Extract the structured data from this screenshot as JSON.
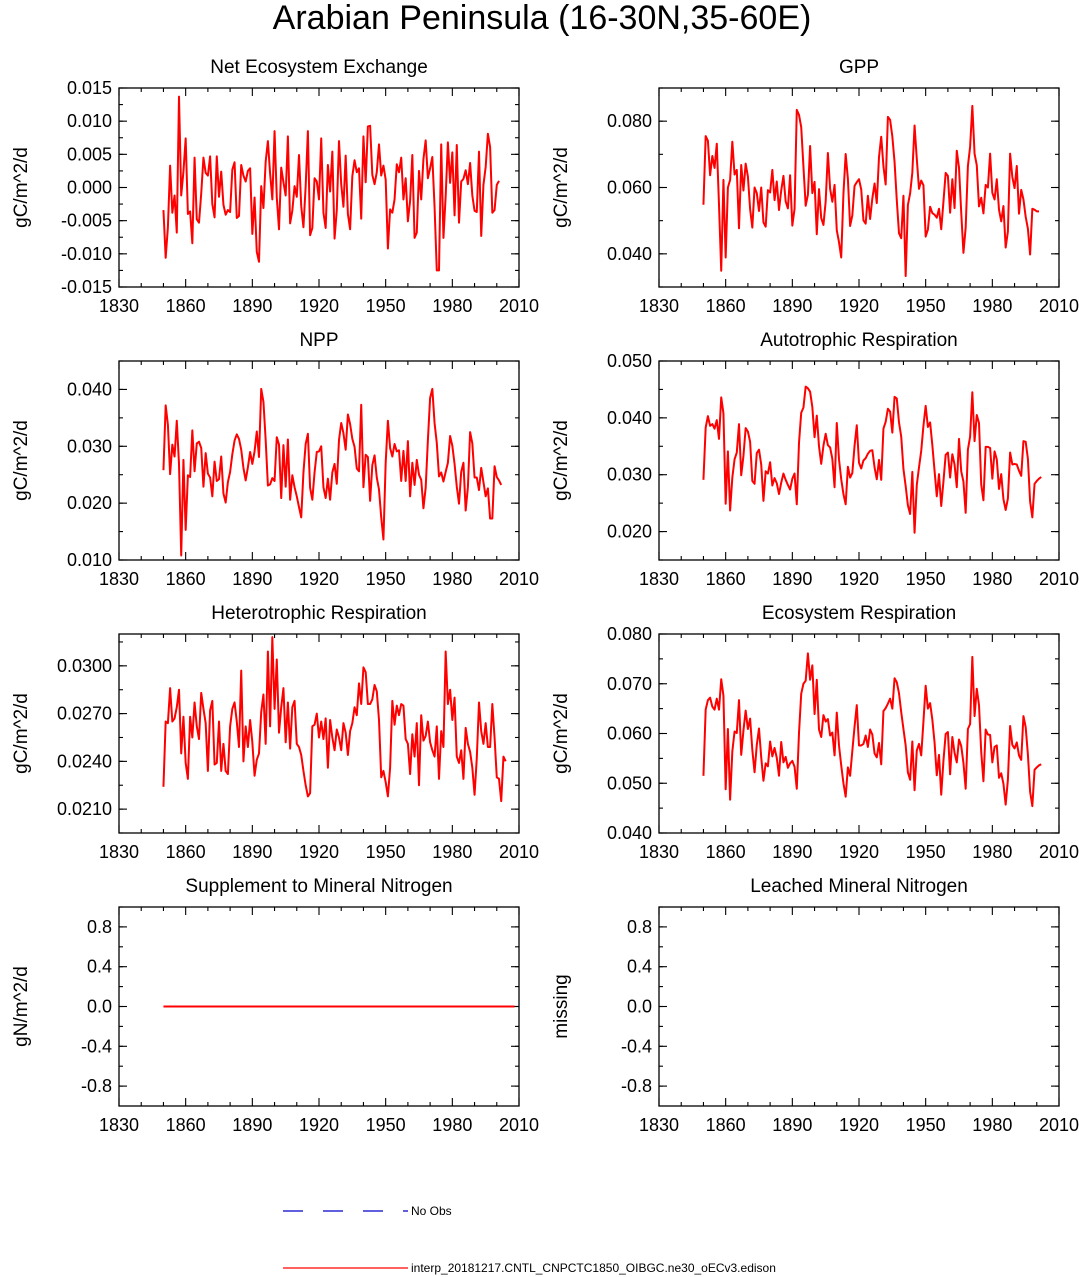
{
  "figure": {
    "title": "Arabian Peninsula (16-30N,35-60E)",
    "series_color": "#ff0000",
    "obs_color": "#0000cc"
  },
  "legend": {
    "obs_label": "No Obs",
    "model_label": "interp_20181217.CNTL_CNPCTC1850_OIBGC.ne30_oECv3.edison"
  },
  "chart_data": [
    {
      "type": "line",
      "title": "Net Ecosystem Exchange",
      "ylabel": "gC/m^2/d",
      "xlim": [
        1830,
        2010
      ],
      "ylim": [
        -0.015,
        0.015
      ],
      "xticks": [
        "1830",
        "1860",
        "1890",
        "1920",
        "1950",
        "1980",
        "2010"
      ],
      "yticks": [
        "-0.015",
        "-0.010",
        "-0.005",
        "0.000",
        "0.005",
        "0.010",
        "0.015"
      ],
      "x_start": 1850,
      "values": [
        -0.0034,
        -0.0106,
        -0.006,
        0.0033,
        -0.0038,
        -0.0012,
        -0.0068,
        0.0137,
        -0.0012,
        0.0024,
        0.0074,
        -0.004,
        -0.0036,
        -0.0084,
        0.0045,
        -0.0048,
        -0.0053,
        -0.0009,
        0.0045,
        0.0022,
        0.0018,
        0.0047,
        -0.0025,
        -0.0045,
        0.0047,
        -0.0014,
        0.0024,
        -0.0026,
        -0.0041,
        -0.0034,
        -0.0037,
        0.0027,
        0.0038,
        -0.0046,
        -0.0043,
        0.0034,
        0.0018,
        0.0009,
        0.0025,
        0.0029,
        -0.007,
        -0.0015,
        -0.0097,
        -0.0112,
        0.0002,
        -0.0031,
        0.0039,
        0.007,
        0.0021,
        -0.0018,
        0.0085,
        -0.0015,
        -0.0063,
        0.003,
        0.0008,
        -0.0012,
        0.0077,
        -0.0054,
        -0.0035,
        0.0002,
        -0.0014,
        0.0049,
        -0.0028,
        -0.006,
        0.0002,
        0.0085,
        -0.0072,
        -0.0061,
        0.0014,
        0.0009,
        -0.0018,
        0.0074,
        -0.0038,
        -0.0061,
        0.0034,
        -0.0006,
        0.0054,
        -0.0077,
        -0.0034,
        0.007,
        0.0005,
        -0.0029,
        0.0048,
        -0.004,
        -0.0063,
        0.0017,
        0.0041,
        0.0023,
        0.0029,
        -0.0047,
        0.0077,
        0.0008,
        0.0092,
        0.0093,
        0.0019,
        0.0005,
        0.0023,
        0.0065,
        0.0018,
        0.0033,
        0.0012,
        -0.0092,
        -0.0033,
        -0.0038,
        -0.0018,
        0.0035,
        0.0023,
        0.0045,
        -0.0018,
        0.0014,
        -0.0051,
        -0.002,
        0.0049,
        -0.0076,
        -0.0068,
        0.0025,
        -0.0018,
        0.0043,
        0.0071,
        0.0014,
        0.0029,
        0.0046,
        -0.0029,
        -0.0125,
        -0.0125,
        0.0065,
        -0.0076,
        -0.0013,
        0.0068,
        0.0007,
        0.0053,
        -0.0042,
        0.0064,
        -0.0053,
        0.0009,
        0.0013,
        0.0026,
        0.0005,
        0.0037,
        -0.0012,
        -0.0035,
        -0.0037,
        0.0054,
        -0.0073,
        0.0004,
        0.0031,
        0.0081,
        0.0061,
        -0.0038,
        -0.0034,
        0.0004,
        0.001
      ]
    },
    {
      "type": "line",
      "title": "GPP",
      "ylabel": "gC/m^2/d",
      "xlim": [
        1830,
        2010
      ],
      "ylim": [
        0.03,
        0.09
      ],
      "xticks": [
        "1830",
        "1860",
        "1890",
        "1920",
        "1950",
        "1980",
        "2010"
      ],
      "yticks": [
        "0.040",
        "0.060",
        "0.080"
      ],
      "ytick_values": [
        0.04,
        0.06,
        0.08
      ],
      "x_start": 1850,
      "values": [
        0.0548,
        0.0755,
        0.0741,
        0.0637,
        0.0695,
        0.0659,
        0.0732,
        0.0548,
        0.0349,
        0.0623,
        0.0389,
        0.06,
        0.0623,
        0.0738,
        0.0639,
        0.0653,
        0.0477,
        0.0668,
        0.0591,
        0.0672,
        0.0633,
        0.0535,
        0.0479,
        0.06,
        0.0583,
        0.0529,
        0.06,
        0.0495,
        0.0482,
        0.0592,
        0.0585,
        0.0653,
        0.0562,
        0.0618,
        0.0532,
        0.0591,
        0.0635,
        0.0558,
        0.0537,
        0.0637,
        0.0485,
        0.0536,
        0.0834,
        0.0819,
        0.0782,
        0.0663,
        0.0545,
        0.0578,
        0.0725,
        0.0583,
        0.0617,
        0.0459,
        0.0595,
        0.0508,
        0.0487,
        0.0558,
        0.0704,
        0.0596,
        0.0557,
        0.0608,
        0.0471,
        0.0435,
        0.0389,
        0.0581,
        0.0701,
        0.0626,
        0.0484,
        0.0516,
        0.0605,
        0.0616,
        0.0625,
        0.0594,
        0.0501,
        0.0491,
        0.0575,
        0.0505,
        0.0567,
        0.0612,
        0.0553,
        0.0692,
        0.0753,
        0.0664,
        0.0609,
        0.0813,
        0.0804,
        0.0754,
        0.0677,
        0.0562,
        0.0462,
        0.0447,
        0.0575,
        0.0333,
        0.0547,
        0.0582,
        0.0645,
        0.0787,
        0.0687,
        0.0596,
        0.0621,
        0.0607,
        0.0452,
        0.0473,
        0.0542,
        0.0523,
        0.0518,
        0.0509,
        0.0536,
        0.0474,
        0.0557,
        0.0644,
        0.0635,
        0.0524,
        0.0625,
        0.0538,
        0.0711,
        0.066,
        0.0525,
        0.0403,
        0.0479,
        0.0664,
        0.0723,
        0.0846,
        0.0702,
        0.0667,
        0.0543,
        0.0569,
        0.0522,
        0.0608,
        0.06,
        0.0702,
        0.0584,
        0.0564,
        0.0625,
        0.0533,
        0.0498,
        0.0544,
        0.0419,
        0.0467,
        0.0702,
        0.0632,
        0.0598,
        0.0665,
        0.0521,
        0.0593,
        0.0564,
        0.0512,
        0.0476,
        0.0398,
        0.0536,
        0.0533,
        0.0528,
        0.0528
      ]
    },
    {
      "type": "line",
      "title": "NPP",
      "ylabel": "gC/m^2/d",
      "xlim": [
        1830,
        2010
      ],
      "ylim": [
        0.01,
        0.045
      ],
      "xticks": [
        "1830",
        "1860",
        "1890",
        "1920",
        "1950",
        "1980",
        "2010"
      ],
      "yticks": [
        "0.010",
        "0.020",
        "0.030",
        "0.040"
      ],
      "ytick_values": [
        0.01,
        0.02,
        0.03,
        0.04
      ],
      "x_start": 1850,
      "values": [
        0.0258,
        0.0372,
        0.0338,
        0.0251,
        0.0303,
        0.0282,
        0.0345,
        0.0269,
        0.0108,
        0.0276,
        0.0153,
        0.0249,
        0.0246,
        0.0328,
        0.0256,
        0.0305,
        0.0308,
        0.0297,
        0.0229,
        0.0288,
        0.0252,
        0.0245,
        0.0212,
        0.0273,
        0.0239,
        0.0242,
        0.0282,
        0.0217,
        0.0201,
        0.0237,
        0.0255,
        0.0286,
        0.031,
        0.0321,
        0.0313,
        0.0294,
        0.0262,
        0.024,
        0.0263,
        0.029,
        0.0269,
        0.0291,
        0.0326,
        0.0281,
        0.0401,
        0.0378,
        0.0311,
        0.0231,
        0.0233,
        0.0244,
        0.0239,
        0.0316,
        0.0303,
        0.0209,
        0.0302,
        0.0229,
        0.0312,
        0.0206,
        0.0249,
        0.0228,
        0.0212,
        0.0193,
        0.0175,
        0.0254,
        0.0304,
        0.0322,
        0.0227,
        0.0206,
        0.0254,
        0.029,
        0.0291,
        0.03,
        0.0228,
        0.0209,
        0.0243,
        0.0206,
        0.0254,
        0.0269,
        0.0234,
        0.0311,
        0.0341,
        0.0323,
        0.0294,
        0.0356,
        0.0339,
        0.0313,
        0.0299,
        0.0261,
        0.0256,
        0.0373,
        0.0228,
        0.0285,
        0.0281,
        0.0204,
        0.0267,
        0.0284,
        0.0245,
        0.0224,
        0.0175,
        0.0136,
        0.0271,
        0.0345,
        0.0297,
        0.0282,
        0.0304,
        0.0291,
        0.0293,
        0.0239,
        0.0292,
        0.0239,
        0.0309,
        0.0212,
        0.0271,
        0.0232,
        0.0276,
        0.025,
        0.0241,
        0.0191,
        0.0227,
        0.0311,
        0.0385,
        0.0401,
        0.0341,
        0.0306,
        0.0247,
        0.0254,
        0.0238,
        0.0255,
        0.0271,
        0.0318,
        0.0301,
        0.0269,
        0.0229,
        0.0199,
        0.0255,
        0.0271,
        0.0187,
        0.0228,
        0.0325,
        0.0305,
        0.0245,
        0.0245,
        0.0223,
        0.0262,
        0.0237,
        0.0212,
        0.0226,
        0.0173,
        0.0173,
        0.0265,
        0.0246,
        0.024,
        0.0232
      ]
    },
    {
      "type": "line",
      "title": "Autotrophic Respiration",
      "ylabel": "gC/m^2/d",
      "xlim": [
        1830,
        2010
      ],
      "ylim": [
        0.015,
        0.05
      ],
      "xticks": [
        "1830",
        "1860",
        "1890",
        "1920",
        "1950",
        "1980",
        "2010"
      ],
      "yticks": [
        "0.020",
        "0.030",
        "0.040",
        "0.050"
      ],
      "ytick_values": [
        0.02,
        0.03,
        0.04,
        0.05
      ],
      "x_start": 1850,
      "values": [
        0.0291,
        0.0383,
        0.0403,
        0.0386,
        0.0389,
        0.0381,
        0.0396,
        0.0363,
        0.0436,
        0.0408,
        0.0249,
        0.0341,
        0.0237,
        0.0295,
        0.0327,
        0.0339,
        0.0389,
        0.0299,
        0.0333,
        0.0382,
        0.0376,
        0.0358,
        0.0289,
        0.0284,
        0.0338,
        0.0344,
        0.0318,
        0.0254,
        0.0306,
        0.0302,
        0.0322,
        0.0281,
        0.0294,
        0.0285,
        0.0266,
        0.0286,
        0.0302,
        0.0291,
        0.0282,
        0.0274,
        0.0293,
        0.0302,
        0.0248,
        0.0356,
        0.0409,
        0.0418,
        0.0455,
        0.0452,
        0.0446,
        0.0419,
        0.0366,
        0.0404,
        0.035,
        0.0319,
        0.0351,
        0.0372,
        0.0352,
        0.0348,
        0.0328,
        0.0278,
        0.0391,
        0.0327,
        0.0292,
        0.0266,
        0.0248,
        0.0314,
        0.0295,
        0.0303,
        0.0351,
        0.0387,
        0.0321,
        0.0311,
        0.0325,
        0.0329,
        0.0337,
        0.0342,
        0.0343,
        0.0313,
        0.0292,
        0.0326,
        0.0291,
        0.0381,
        0.0393,
        0.0416,
        0.0411,
        0.0374,
        0.0437,
        0.0434,
        0.0392,
        0.0367,
        0.031,
        0.028,
        0.0246,
        0.0231,
        0.0305,
        0.0198,
        0.0282,
        0.0313,
        0.0342,
        0.0386,
        0.0421,
        0.0384,
        0.0392,
        0.0352,
        0.0307,
        0.0262,
        0.0301,
        0.0245,
        0.0288,
        0.0335,
        0.0339,
        0.0295,
        0.0336,
        0.0318,
        0.0278,
        0.0363,
        0.0306,
        0.0288,
        0.0233,
        0.0344,
        0.0367,
        0.0445,
        0.0359,
        0.0405,
        0.0391,
        0.0283,
        0.0255,
        0.0349,
        0.0349,
        0.0347,
        0.0293,
        0.0341,
        0.0327,
        0.0275,
        0.0301,
        0.0257,
        0.0238,
        0.0258,
        0.0339,
        0.0318,
        0.0319,
        0.0318,
        0.0307,
        0.0298,
        0.0359,
        0.0358,
        0.0328,
        0.0253,
        0.0225,
        0.0284,
        0.0289,
        0.0293,
        0.0296
      ]
    },
    {
      "type": "line",
      "title": "Heterotrophic Respiration",
      "ylabel": "gC/m^2/d",
      "xlim": [
        1830,
        2010
      ],
      "ylim": [
        0.0195,
        0.032
      ],
      "xticks": [
        "1830",
        "1860",
        "1890",
        "1920",
        "1950",
        "1980",
        "2010"
      ],
      "yticks": [
        "0.0210",
        "0.0240",
        "0.0270",
        "0.0300"
      ],
      "ytick_values": [
        0.021,
        0.024,
        0.027,
        0.03
      ],
      "x_start": 1850,
      "values": [
        0.0224,
        0.0265,
        0.0264,
        0.0286,
        0.0265,
        0.0267,
        0.0274,
        0.0285,
        0.0245,
        0.0268,
        0.0239,
        0.0229,
        0.0268,
        0.0255,
        0.0277,
        0.0262,
        0.0254,
        0.0283,
        0.0273,
        0.0264,
        0.0234,
        0.0272,
        0.0278,
        0.0238,
        0.0239,
        0.0265,
        0.0234,
        0.0251,
        0.0234,
        0.0232,
        0.0262,
        0.0273,
        0.0277,
        0.0265,
        0.0249,
        0.0297,
        0.024,
        0.0262,
        0.0249,
        0.0266,
        0.0252,
        0.0231,
        0.0241,
        0.0245,
        0.0271,
        0.0282,
        0.0251,
        0.0309,
        0.0262,
        0.0318,
        0.0273,
        0.0304,
        0.0258,
        0.0274,
        0.0286,
        0.0252,
        0.0277,
        0.0248,
        0.0274,
        0.0278,
        0.0251,
        0.0249,
        0.0244,
        0.0234,
        0.0225,
        0.0218,
        0.022,
        0.0262,
        0.0263,
        0.027,
        0.0255,
        0.0265,
        0.0254,
        0.0267,
        0.0236,
        0.0266,
        0.0255,
        0.0247,
        0.026,
        0.0255,
        0.0247,
        0.0264,
        0.0258,
        0.0244,
        0.0259,
        0.0264,
        0.0274,
        0.0269,
        0.0289,
        0.0276,
        0.0299,
        0.0296,
        0.0276,
        0.0276,
        0.0279,
        0.0288,
        0.0284,
        0.0266,
        0.023,
        0.0234,
        0.0227,
        0.0218,
        0.0236,
        0.0278,
        0.0263,
        0.0275,
        0.0269,
        0.0276,
        0.0275,
        0.0254,
        0.0251,
        0.0232,
        0.0257,
        0.0243,
        0.0264,
        0.0225,
        0.0269,
        0.0253,
        0.0256,
        0.0265,
        0.0252,
        0.0247,
        0.0243,
        0.0262,
        0.0229,
        0.0259,
        0.0249,
        0.0309,
        0.0276,
        0.0285,
        0.0266,
        0.028,
        0.0243,
        0.0239,
        0.0247,
        0.0229,
        0.0261,
        0.0251,
        0.0246,
        0.0236,
        0.0219,
        0.0242,
        0.0277,
        0.0259,
        0.0251,
        0.0264,
        0.0249,
        0.0249,
        0.0276,
        0.0255,
        0.023,
        0.0229,
        0.0215,
        0.0243,
        0.024
      ]
    },
    {
      "type": "line",
      "title": "Ecosystem Respiration",
      "ylabel": "gC/m^2/d",
      "xlim": [
        1830,
        2010
      ],
      "ylim": [
        0.04,
        0.08
      ],
      "xticks": [
        "1830",
        "1860",
        "1890",
        "1920",
        "1950",
        "1980",
        "2010"
      ],
      "yticks": [
        "0.040",
        "0.050",
        "0.060",
        "0.070",
        "0.080"
      ],
      "ytick_values": [
        0.04,
        0.05,
        0.06,
        0.07,
        0.08
      ],
      "x_start": 1850,
      "values": [
        0.0515,
        0.0648,
        0.0667,
        0.0672,
        0.0654,
        0.0648,
        0.067,
        0.0648,
        0.0709,
        0.0676,
        0.0488,
        0.0609,
        0.0467,
        0.0564,
        0.0604,
        0.0601,
        0.0667,
        0.0557,
        0.0606,
        0.0646,
        0.0609,
        0.063,
        0.0567,
        0.0522,
        0.0577,
        0.061,
        0.0552,
        0.0505,
        0.054,
        0.0534,
        0.0584,
        0.0554,
        0.0571,
        0.0551,
        0.0515,
        0.0583,
        0.0542,
        0.0553,
        0.0531,
        0.054,
        0.0545,
        0.0533,
        0.0489,
        0.0601,
        0.068,
        0.07,
        0.0706,
        0.0761,
        0.0708,
        0.0737,
        0.0639,
        0.0708,
        0.0608,
        0.0593,
        0.0637,
        0.0624,
        0.0629,
        0.0596,
        0.0602,
        0.0556,
        0.0642,
        0.0576,
        0.0536,
        0.05,
        0.0473,
        0.0532,
        0.0515,
        0.0565,
        0.0614,
        0.0657,
        0.0576,
        0.0576,
        0.0579,
        0.0596,
        0.0573,
        0.0608,
        0.0598,
        0.056,
        0.0552,
        0.0581,
        0.0538,
        0.0645,
        0.0651,
        0.066,
        0.067,
        0.065,
        0.0711,
        0.0703,
        0.0681,
        0.0643,
        0.0609,
        0.0576,
        0.0522,
        0.0507,
        0.0584,
        0.0486,
        0.0566,
        0.0579,
        0.0556,
        0.0624,
        0.0696,
        0.065,
        0.0661,
        0.0628,
        0.0582,
        0.0516,
        0.0557,
        0.0477,
        0.0545,
        0.0599,
        0.0603,
        0.0518,
        0.0593,
        0.0561,
        0.0542,
        0.0588,
        0.0575,
        0.0541,
        0.0489,
        0.0609,
        0.0619,
        0.0754,
        0.0635,
        0.069,
        0.0657,
        0.0563,
        0.0504,
        0.0608,
        0.0598,
        0.0597,
        0.0542,
        0.0573,
        0.0576,
        0.0511,
        0.052,
        0.0499,
        0.0457,
        0.0507,
        0.0615,
        0.0577,
        0.057,
        0.0582,
        0.0556,
        0.0547,
        0.0635,
        0.0613,
        0.0558,
        0.0483,
        0.0454,
        0.0527,
        0.0532,
        0.0536,
        0.0538
      ]
    },
    {
      "type": "line",
      "title": "Supplement to Mineral Nitrogen",
      "ylabel": "gN/m^2/d",
      "xlim": [
        1830,
        2010
      ],
      "ylim": [
        -1,
        1
      ],
      "xticks": [
        "1830",
        "1860",
        "1890",
        "1920",
        "1950",
        "1980",
        "2010"
      ],
      "yticks": [
        "-0.8",
        "-0.4",
        "0.0",
        "0.4",
        "0.8"
      ],
      "ytick_values": [
        -0.8,
        -0.4,
        0,
        0.4,
        0.8
      ],
      "x_start": 1850,
      "x_end": 2008,
      "constant_value": 0.0
    },
    {
      "type": "line",
      "title": "Leached Mineral Nitrogen",
      "ylabel": "missing",
      "xlim": [
        1830,
        2010
      ],
      "ylim": [
        -1,
        1
      ],
      "xticks": [
        "1830",
        "1860",
        "1890",
        "1920",
        "1950",
        "1980",
        "2010"
      ],
      "yticks": [
        "-0.8",
        "-0.4",
        "0.0",
        "0.4",
        "0.8"
      ],
      "ytick_values": [
        -0.8,
        -0.4,
        0,
        0.4,
        0.8
      ],
      "x_start": 1850,
      "values": []
    }
  ]
}
